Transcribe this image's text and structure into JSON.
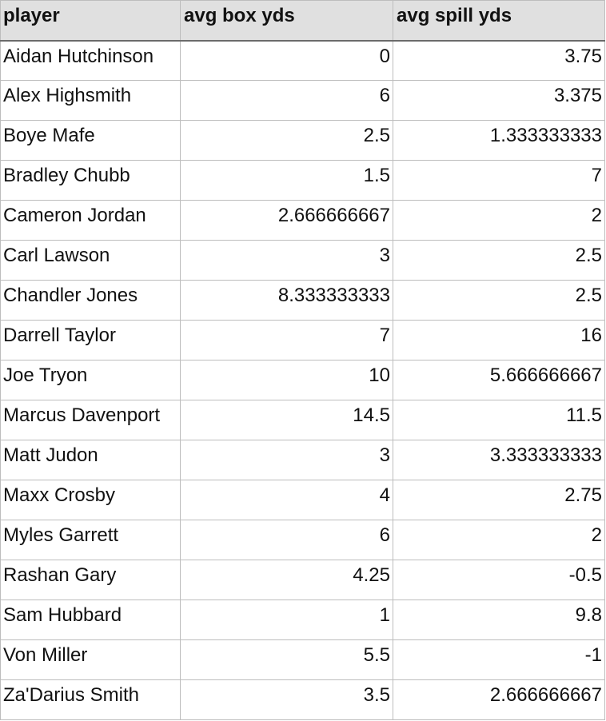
{
  "headers": [
    "player",
    "avg box yds",
    "avg spill yds"
  ],
  "rows": [
    [
      "Aidan Hutchinson",
      "0",
      "3.75"
    ],
    [
      "Alex Highsmith",
      "6",
      "3.375"
    ],
    [
      "Boye Mafe",
      "2.5",
      "1.333333333"
    ],
    [
      "Bradley Chubb",
      "1.5",
      "7"
    ],
    [
      "Cameron Jordan",
      "2.666666667",
      "2"
    ],
    [
      "Carl Lawson",
      "3",
      "2.5"
    ],
    [
      "Chandler Jones",
      "8.333333333",
      "2.5"
    ],
    [
      "Darrell Taylor",
      "7",
      "16"
    ],
    [
      "Joe Tryon",
      "10",
      "5.666666667"
    ],
    [
      "Marcus Davenport",
      "14.5",
      "11.5"
    ],
    [
      "Matt Judon",
      "3",
      "3.333333333"
    ],
    [
      "Maxx Crosby",
      "4",
      "2.75"
    ],
    [
      "Myles Garrett",
      "6",
      "2"
    ],
    [
      "Rashan Gary",
      "4.25",
      "-0.5"
    ],
    [
      "Sam Hubbard",
      "1",
      "9.8"
    ],
    [
      "Von Miller",
      "5.5",
      "-1"
    ],
    [
      "Za'Darius Smith",
      "3.5",
      "2.666666667"
    ]
  ]
}
